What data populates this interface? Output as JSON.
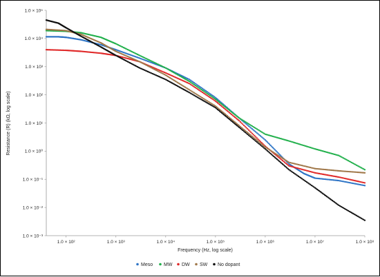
{
  "chart_data": {
    "type": "scatter",
    "title": "",
    "xlabel": "Frequency (Hz, log scale)",
    "ylabel": "Resistance (R) (kΩ, log scale)",
    "x_scale": "log",
    "y_scale": "log",
    "xlim": [
      40,
      100000000
    ],
    "ylim": [
      0.001,
      100000
    ],
    "x_tick_values": [
      100,
      1000,
      10000,
      100000,
      1000000,
      10000000,
      100000000
    ],
    "x_tick_labels": [
      "1.0 × 10²",
      "1.0 × 10³",
      "1.0 × 10⁴",
      "1.0 × 10⁵",
      "1.0 × 10⁶",
      "1.0 × 10⁷",
      "1.0 × 10⁸"
    ],
    "y_tick_values": [
      0.001,
      0.01,
      0.1,
      1,
      10,
      100,
      1000,
      10000,
      100000
    ],
    "y_tick_labels": [
      "1.0 × 10⁻³",
      "1.0 × 10⁻²",
      "1.0 × 10⁻¹",
      "1.0 × 10⁰",
      "1.0 × 10¹",
      "1.0 × 10²",
      "1.0 × 10³",
      "1.0 × 10⁴",
      "1.0 × 10⁵"
    ],
    "grid": false,
    "legend_position": "bottom",
    "series": [
      {
        "name": "Meso",
        "color": "#2f75c6",
        "points": [
          [
            40,
            11500
          ],
          [
            70,
            11500
          ],
          [
            100,
            11000
          ],
          [
            200,
            9000
          ],
          [
            500,
            6000
          ],
          [
            1000,
            4000
          ],
          [
            3000,
            2000
          ],
          [
            10000,
            900
          ],
          [
            30000,
            350
          ],
          [
            100000,
            80
          ],
          [
            300000,
            15
          ],
          [
            1000000,
            2.5
          ],
          [
            3000000,
            0.35
          ],
          [
            6000000,
            0.16
          ],
          [
            10000000,
            0.11
          ],
          [
            30000000,
            0.09
          ],
          [
            100000000,
            0.06
          ]
        ]
      },
      {
        "name": "MW",
        "color": "#22b04c",
        "points": [
          [
            40,
            19000
          ],
          [
            100,
            18000
          ],
          [
            200,
            16000
          ],
          [
            500,
            11000
          ],
          [
            1000,
            6500
          ],
          [
            3000,
            2500
          ],
          [
            10000,
            900
          ],
          [
            30000,
            300
          ],
          [
            100000,
            70
          ],
          [
            300000,
            15
          ],
          [
            1000000,
            4
          ],
          [
            3000000,
            2.3
          ],
          [
            10000000,
            1.2
          ],
          [
            30000000,
            0.7
          ],
          [
            100000000,
            0.22
          ]
        ]
      },
      {
        "name": "DW",
        "color": "#e02a2a",
        "points": [
          [
            40,
            4000
          ],
          [
            100,
            3800
          ],
          [
            200,
            3500
          ],
          [
            500,
            3000
          ],
          [
            1000,
            2500
          ],
          [
            3000,
            1500
          ],
          [
            10000,
            600
          ],
          [
            30000,
            250
          ],
          [
            100000,
            60
          ],
          [
            300000,
            12
          ],
          [
            1000000,
            1.5
          ],
          [
            3000000,
            0.3
          ],
          [
            10000000,
            0.17
          ],
          [
            30000000,
            0.12
          ],
          [
            100000000,
            0.075
          ]
        ]
      },
      {
        "name": "SW",
        "color": "#a0784a",
        "points": [
          [
            40,
            21000
          ],
          [
            100,
            19000
          ],
          [
            200,
            14000
          ],
          [
            500,
            7000
          ],
          [
            1000,
            3500
          ],
          [
            3000,
            1500
          ],
          [
            10000,
            500
          ],
          [
            30000,
            150
          ],
          [
            100000,
            40
          ],
          [
            300000,
            8
          ],
          [
            1000000,
            1.4
          ],
          [
            3000000,
            0.4
          ],
          [
            10000000,
            0.24
          ],
          [
            30000000,
            0.2
          ],
          [
            100000000,
            0.17
          ]
        ]
      },
      {
        "name": "No dopant",
        "color": "#111111",
        "points": [
          [
            40,
            45000
          ],
          [
            70,
            35000
          ],
          [
            100,
            24000
          ],
          [
            200,
            12000
          ],
          [
            500,
            5000
          ],
          [
            1000,
            2500
          ],
          [
            3000,
            900
          ],
          [
            10000,
            350
          ],
          [
            30000,
            120
          ],
          [
            100000,
            35
          ],
          [
            300000,
            7
          ],
          [
            1000000,
            1.2
          ],
          [
            3000000,
            0.22
          ],
          [
            10000000,
            0.05
          ],
          [
            30000000,
            0.012
          ],
          [
            100000000,
            0.0035
          ]
        ]
      }
    ]
  }
}
